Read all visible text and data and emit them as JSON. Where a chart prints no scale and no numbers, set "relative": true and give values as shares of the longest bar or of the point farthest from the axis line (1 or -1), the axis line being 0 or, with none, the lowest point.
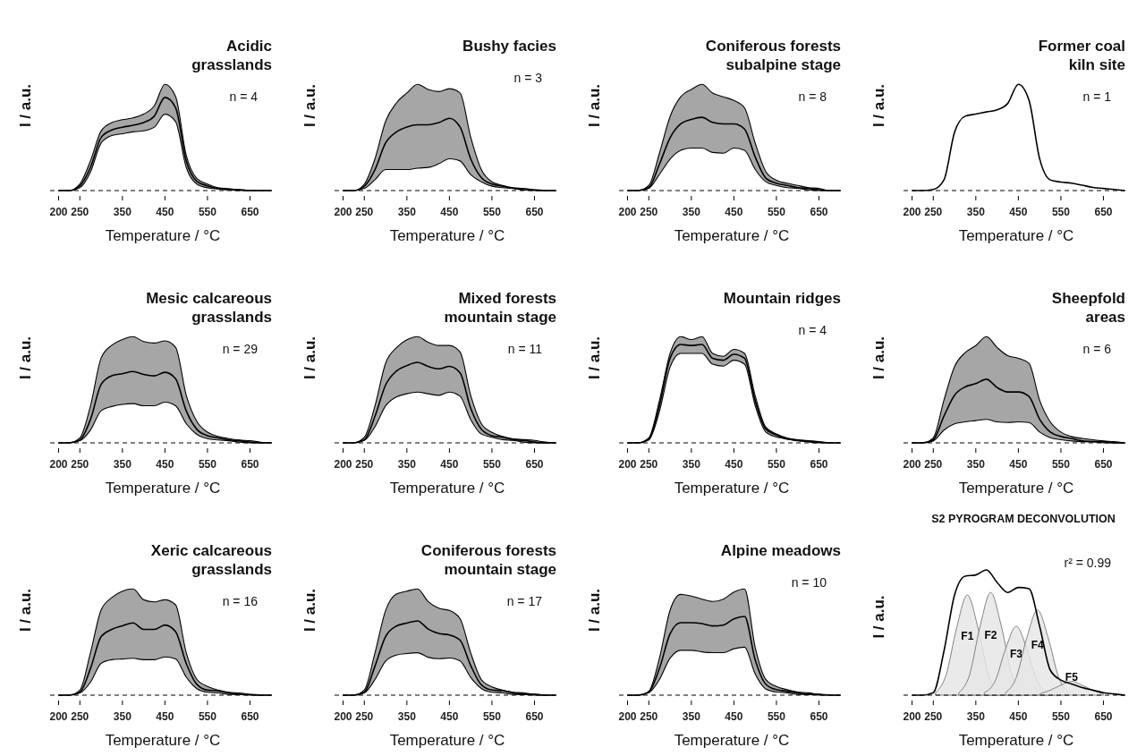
{
  "chart_data": [
    {
      "type": "line",
      "relative": true,
      "title": "Acidic\ngrasslands",
      "annotations": [
        "n = 4"
      ],
      "xlabel": "Temperature / °C",
      "ylabel": "I / a.u.",
      "xlim": [
        180,
        710
      ],
      "xticks": [
        200,
        250,
        350,
        450,
        550,
        650
      ],
      "ref_lines": [
        {
          "axis": "y",
          "value": 0,
          "line_style": "dashed",
          "color": "#000000"
        }
      ],
      "x": [
        200,
        225,
        250,
        275,
        300,
        325,
        350,
        375,
        400,
        425,
        450,
        475,
        500,
        525,
        550,
        575,
        600,
        625,
        650,
        675,
        700
      ],
      "series": [
        {
          "color": "#000000",
          "values": [
            0,
            0,
            0.05,
            0.25,
            0.57,
            0.65,
            0.68,
            0.7,
            0.73,
            0.8,
            1,
            0.89,
            0.32,
            0.1,
            0.05,
            0.02,
            0.01,
            0.01,
            0,
            0,
            0
          ],
          "lower": [
            0,
            0,
            0.03,
            0.2,
            0.51,
            0.59,
            0.61,
            0.63,
            0.64,
            0.68,
            0.82,
            0.74,
            0.25,
            0.07,
            0.03,
            0.02,
            0.01,
            0,
            0,
            0,
            0
          ],
          "upper": [
            0,
            0,
            0.07,
            0.32,
            0.64,
            0.73,
            0.76,
            0.78,
            0.82,
            0.91,
            1.14,
            1.01,
            0.38,
            0.13,
            0.07,
            0.03,
            0.02,
            0.01,
            0,
            0,
            0
          ]
        }
      ]
    },
    {
      "type": "line",
      "relative": true,
      "title": "Bushy facies",
      "annotations": [
        "n = 3"
      ],
      "xlabel": "Temperature / °C",
      "ylabel": "I / a.u.",
      "xlim": [
        180,
        710
      ],
      "xticks": [
        200,
        250,
        350,
        450,
        550,
        650
      ],
      "ref_lines": [
        {
          "axis": "y",
          "value": 0,
          "line_style": "dashed",
          "color": "#000000"
        }
      ],
      "x": [
        200,
        225,
        250,
        275,
        300,
        325,
        350,
        375,
        400,
        425,
        450,
        475,
        500,
        525,
        550,
        575,
        600,
        625,
        650,
        675,
        700
      ],
      "series": [
        {
          "color": "#000000",
          "values": [
            0,
            0,
            0.06,
            0.29,
            0.66,
            0.81,
            0.88,
            0.91,
            0.91,
            0.94,
            1,
            0.88,
            0.44,
            0.18,
            0.09,
            0.06,
            0.03,
            0.01,
            0.01,
            0,
            0
          ],
          "lower": [
            0,
            0,
            0.03,
            0.15,
            0.29,
            0.29,
            0.29,
            0.31,
            0.32,
            0.37,
            0.44,
            0.41,
            0.22,
            0.12,
            0.06,
            0.04,
            0.03,
            0.01,
            0,
            0,
            0
          ],
          "upper": [
            0,
            0,
            0.09,
            0.44,
            0.96,
            1.21,
            1.35,
            1.47,
            1.4,
            1.37,
            1.41,
            1.35,
            0.74,
            0.29,
            0.12,
            0.07,
            0.04,
            0.03,
            0.01,
            0,
            0
          ]
        }
      ]
    },
    {
      "type": "line",
      "relative": true,
      "title": "Coniferous forests\nsubalpine stage",
      "annotations": [
        "n = 8"
      ],
      "xlabel": "Temperature / °C",
      "ylabel": "I / a.u.",
      "xlim": [
        180,
        710
      ],
      "xticks": [
        200,
        250,
        350,
        450,
        550,
        650
      ],
      "ref_lines": [
        {
          "axis": "y",
          "value": 0,
          "line_style": "dashed",
          "color": "#000000"
        }
      ],
      "x": [
        200,
        225,
        250,
        275,
        300,
        325,
        350,
        375,
        400,
        425,
        450,
        475,
        500,
        525,
        550,
        575,
        600,
        625,
        650,
        675,
        700
      ],
      "series": [
        {
          "color": "#000000",
          "values": [
            0,
            0,
            0.04,
            0.36,
            0.72,
            0.91,
            0.97,
            1,
            0.93,
            0.91,
            0.91,
            0.84,
            0.46,
            0.17,
            0.1,
            0.07,
            0.04,
            0.03,
            0.01,
            0,
            0
          ],
          "lower": [
            0,
            0,
            0.03,
            0.22,
            0.43,
            0.55,
            0.58,
            0.58,
            0.52,
            0.51,
            0.58,
            0.55,
            0.29,
            0.12,
            0.07,
            0.04,
            0.03,
            0.01,
            0,
            0,
            0
          ],
          "upper": [
            0,
            0,
            0.07,
            0.51,
            1.01,
            1.28,
            1.38,
            1.45,
            1.33,
            1.28,
            1.23,
            1.13,
            0.65,
            0.26,
            0.14,
            0.1,
            0.07,
            0.04,
            0.03,
            0,
            0
          ]
        }
      ]
    },
    {
      "type": "line",
      "relative": true,
      "title": "Former coal\nkiln site",
      "annotations": [
        "n = 1"
      ],
      "xlabel": "Temperature / °C",
      "ylabel": "I / a.u.",
      "xlim": [
        180,
        710
      ],
      "xticks": [
        200,
        250,
        350,
        450,
        550,
        650
      ],
      "ref_lines": [
        {
          "axis": "y",
          "value": 0,
          "line_style": "dashed",
          "color": "#000000"
        }
      ],
      "x": [
        200,
        225,
        250,
        275,
        300,
        325,
        350,
        375,
        400,
        425,
        450,
        475,
        500,
        525,
        550,
        575,
        600,
        625,
        650,
        675,
        700
      ],
      "series": [
        {
          "color": "#000000",
          "values": [
            0,
            0,
            0.01,
            0.1,
            0.55,
            0.7,
            0.72,
            0.74,
            0.76,
            0.82,
            1,
            0.85,
            0.3,
            0.1,
            0.08,
            0.07,
            0.05,
            0.03,
            0.02,
            0.01,
            0
          ]
        }
      ]
    },
    {
      "type": "line",
      "relative": true,
      "title": "Mesic calcareous\ngrasslands",
      "annotations": [
        "n = 29"
      ],
      "xlabel": "Temperature / °C",
      "ylabel": "I / a.u.",
      "xlim": [
        180,
        710
      ],
      "xticks": [
        200,
        250,
        350,
        450,
        550,
        650
      ],
      "ref_lines": [
        {
          "axis": "y",
          "value": 0,
          "line_style": "dashed",
          "color": "#000000"
        }
      ],
      "x": [
        200,
        225,
        250,
        275,
        300,
        325,
        350,
        375,
        400,
        425,
        450,
        475,
        500,
        525,
        550,
        575,
        600,
        625,
        650,
        675,
        700
      ],
      "series": [
        {
          "color": "#000000",
          "values": [
            0,
            0,
            0.04,
            0.33,
            0.82,
            0.94,
            0.97,
            1,
            0.96,
            0.94,
            0.99,
            0.9,
            0.45,
            0.19,
            0.1,
            0.07,
            0.04,
            0.03,
            0.01,
            0,
            0
          ],
          "lower": [
            0,
            0,
            0.03,
            0.18,
            0.45,
            0.51,
            0.54,
            0.55,
            0.52,
            0.52,
            0.57,
            0.52,
            0.27,
            0.12,
            0.06,
            0.04,
            0.03,
            0.01,
            0,
            0,
            0
          ],
          "upper": [
            0,
            0,
            0.07,
            0.52,
            1.19,
            1.37,
            1.45,
            1.49,
            1.42,
            1.4,
            1.43,
            1.34,
            0.67,
            0.3,
            0.15,
            0.09,
            0.06,
            0.04,
            0.03,
            0.01,
            0
          ]
        }
      ]
    },
    {
      "type": "line",
      "relative": true,
      "title": "Mixed forests\nmountain stage",
      "annotations": [
        "n = 11"
      ],
      "xlabel": "Temperature / °C",
      "ylabel": "I / a.u.",
      "xlim": [
        180,
        710
      ],
      "xticks": [
        200,
        250,
        350,
        450,
        550,
        650
      ],
      "ref_lines": [
        {
          "axis": "y",
          "value": 0,
          "line_style": "dashed",
          "color": "#000000"
        }
      ],
      "x": [
        200,
        225,
        250,
        275,
        300,
        325,
        350,
        375,
        400,
        425,
        450,
        475,
        500,
        525,
        550,
        575,
        600,
        625,
        650,
        675,
        700
      ],
      "series": [
        {
          "color": "#000000",
          "values": [
            0,
            0,
            0.04,
            0.33,
            0.72,
            0.89,
            0.96,
            1,
            0.95,
            0.92,
            0.95,
            0.87,
            0.43,
            0.17,
            0.09,
            0.07,
            0.04,
            0.03,
            0.01,
            0,
            0
          ],
          "lower": [
            0,
            0,
            0.03,
            0.2,
            0.46,
            0.57,
            0.61,
            0.63,
            0.61,
            0.59,
            0.63,
            0.58,
            0.29,
            0.11,
            0.07,
            0.04,
            0.03,
            0.01,
            0,
            0,
            0
          ],
          "upper": [
            0,
            0,
            0.07,
            0.46,
            0.99,
            1.18,
            1.28,
            1.32,
            1.25,
            1.21,
            1.21,
            1.13,
            0.59,
            0.24,
            0.13,
            0.08,
            0.05,
            0.04,
            0.03,
            0.01,
            0
          ]
        }
      ]
    },
    {
      "type": "line",
      "relative": true,
      "title": "Mountain ridges",
      "annotations": [
        "n = 4"
      ],
      "xlabel": "Temperature / °C",
      "ylabel": "I / a.u.",
      "xlim": [
        180,
        710
      ],
      "xticks": [
        200,
        250,
        350,
        450,
        550,
        650
      ],
      "ref_lines": [
        {
          "axis": "y",
          "value": 0,
          "line_style": "dashed",
          "color": "#000000"
        }
      ],
      "x": [
        200,
        225,
        250,
        275,
        300,
        325,
        350,
        375,
        400,
        425,
        450,
        475,
        500,
        525,
        550,
        575,
        600,
        625,
        650,
        675,
        700
      ],
      "series": [
        {
          "color": "#000000",
          "values": [
            0,
            0,
            0.04,
            0.38,
            0.86,
            1,
            0.99,
            1,
            0.86,
            0.84,
            0.9,
            0.86,
            0.43,
            0.14,
            0.08,
            0.04,
            0.03,
            0.02,
            0.01,
            0,
            0
          ],
          "lower": [
            0,
            0,
            0.03,
            0.32,
            0.77,
            0.91,
            0.91,
            0.91,
            0.8,
            0.78,
            0.84,
            0.8,
            0.38,
            0.11,
            0.06,
            0.04,
            0.02,
            0.01,
            0,
            0,
            0
          ],
          "upper": [
            0,
            0,
            0.05,
            0.43,
            0.91,
            1.08,
            1.05,
            1.08,
            0.91,
            0.88,
            0.95,
            0.91,
            0.48,
            0.16,
            0.09,
            0.05,
            0.03,
            0.02,
            0.01,
            0,
            0
          ]
        }
      ]
    },
    {
      "type": "line",
      "relative": true,
      "title": "Sheepfold\nareas",
      "annotations": [
        "n = 6"
      ],
      "xlabel": "Temperature / °C",
      "ylabel": "I / a.u.",
      "xlim": [
        180,
        710
      ],
      "xticks": [
        200,
        250,
        350,
        450,
        550,
        650
      ],
      "ref_lines": [
        {
          "axis": "y",
          "value": 0,
          "line_style": "dashed",
          "color": "#000000"
        }
      ],
      "x": [
        200,
        225,
        250,
        275,
        300,
        325,
        350,
        375,
        400,
        425,
        450,
        475,
        500,
        525,
        550,
        575,
        600,
        625,
        650,
        675,
        700
      ],
      "series": [
        {
          "color": "#000000",
          "values": [
            0,
            0,
            0.05,
            0.42,
            0.75,
            0.88,
            0.93,
            1,
            0.87,
            0.8,
            0.8,
            0.73,
            0.37,
            0.17,
            0.1,
            0.07,
            0.03,
            0.02,
            0.02,
            0,
            0
          ],
          "lower": [
            0,
            0,
            0.03,
            0.2,
            0.3,
            0.33,
            0.35,
            0.37,
            0.33,
            0.32,
            0.33,
            0.32,
            0.17,
            0.08,
            0.05,
            0.03,
            0.02,
            0.02,
            0,
            0,
            0
          ],
          "upper": [
            0,
            0,
            0.08,
            0.67,
            1.2,
            1.42,
            1.53,
            1.67,
            1.5,
            1.37,
            1.33,
            1.25,
            0.67,
            0.33,
            0.17,
            0.1,
            0.07,
            0.05,
            0.03,
            0.02,
            0
          ]
        }
      ]
    },
    {
      "type": "line",
      "relative": true,
      "title": "Xeric calcareous\ngrasslands",
      "annotations": [
        "n = 16"
      ],
      "xlabel": "Temperature / °C",
      "ylabel": "I / a.u.",
      "xlim": [
        180,
        710
      ],
      "xticks": [
        200,
        250,
        350,
        450,
        550,
        650
      ],
      "ref_lines": [
        {
          "axis": "y",
          "value": 0,
          "line_style": "dashed",
          "color": "#000000"
        }
      ],
      "x": [
        200,
        225,
        250,
        275,
        300,
        325,
        350,
        375,
        400,
        425,
        450,
        475,
        500,
        525,
        550,
        575,
        600,
        625,
        650,
        675,
        700
      ],
      "series": [
        {
          "color": "#000000",
          "values": [
            0,
            0,
            0.04,
            0.37,
            0.81,
            0.91,
            0.96,
            1,
            0.91,
            0.91,
            0.97,
            0.88,
            0.44,
            0.15,
            0.07,
            0.06,
            0.03,
            0.01,
            0.01,
            0,
            0
          ],
          "lower": [
            0,
            0,
            0.03,
            0.18,
            0.44,
            0.49,
            0.5,
            0.51,
            0.49,
            0.49,
            0.53,
            0.5,
            0.25,
            0.09,
            0.04,
            0.03,
            0.01,
            0.01,
            0,
            0,
            0
          ],
          "upper": [
            0,
            0,
            0.07,
            0.59,
            1.18,
            1.35,
            1.44,
            1.47,
            1.32,
            1.29,
            1.32,
            1.25,
            0.59,
            0.22,
            0.12,
            0.07,
            0.04,
            0.03,
            0.01,
            0,
            0
          ]
        }
      ]
    },
    {
      "type": "line",
      "relative": true,
      "title": "Coniferous forests\nmountain stage",
      "annotations": [
        "n = 17"
      ],
      "xlabel": "Temperature / °C",
      "ylabel": "I / a.u.",
      "xlim": [
        180,
        710
      ],
      "xticks": [
        200,
        250,
        350,
        450,
        550,
        650
      ],
      "ref_lines": [
        {
          "axis": "y",
          "value": 0,
          "line_style": "dashed",
          "color": "#000000"
        }
      ],
      "x": [
        200,
        225,
        250,
        275,
        300,
        325,
        350,
        375,
        400,
        425,
        450,
        475,
        500,
        525,
        550,
        575,
        600,
        625,
        650,
        675,
        700
      ],
      "series": [
        {
          "color": "#000000",
          "values": [
            0,
            0,
            0.04,
            0.39,
            0.79,
            0.93,
            0.97,
            1,
            0.89,
            0.83,
            0.81,
            0.74,
            0.4,
            0.14,
            0.07,
            0.06,
            0.03,
            0.01,
            0.01,
            0,
            0
          ],
          "lower": [
            0,
            0,
            0.03,
            0.21,
            0.46,
            0.54,
            0.56,
            0.57,
            0.51,
            0.49,
            0.5,
            0.46,
            0.24,
            0.09,
            0.04,
            0.03,
            0.01,
            0.01,
            0,
            0,
            0
          ],
          "upper": [
            0,
            0,
            0.07,
            0.57,
            1.14,
            1.36,
            1.4,
            1.43,
            1.26,
            1.17,
            1.14,
            1.03,
            0.57,
            0.21,
            0.11,
            0.07,
            0.04,
            0.03,
            0.01,
            0,
            0
          ]
        }
      ]
    },
    {
      "type": "line",
      "relative": true,
      "title": "Alpine meadows",
      "annotations": [
        "n = 10"
      ],
      "xlabel": "Temperature / °C",
      "ylabel": "I / a.u.",
      "xlim": [
        180,
        710
      ],
      "xticks": [
        200,
        250,
        350,
        450,
        550,
        650
      ],
      "ref_lines": [
        {
          "axis": "y",
          "value": 0,
          "line_style": "dashed",
          "color": "#000000"
        }
      ],
      "x": [
        200,
        225,
        250,
        275,
        300,
        325,
        350,
        375,
        400,
        425,
        450,
        475,
        500,
        525,
        550,
        575,
        600,
        625,
        650,
        675,
        700
      ],
      "series": [
        {
          "color": "#000000",
          "values": [
            0,
            0,
            0.04,
            0.34,
            0.78,
            0.92,
            0.92,
            0.91,
            0.88,
            0.89,
            0.97,
            1,
            0.45,
            0.14,
            0.07,
            0.05,
            0.03,
            0.01,
            0.01,
            0,
            0
          ],
          "lower": [
            0,
            0,
            0.03,
            0.2,
            0.47,
            0.57,
            0.57,
            0.55,
            0.54,
            0.54,
            0.59,
            0.61,
            0.27,
            0.08,
            0.04,
            0.03,
            0.01,
            0.01,
            0,
            0,
            0
          ],
          "upper": [
            0,
            0,
            0.05,
            0.47,
            1.08,
            1.28,
            1.26,
            1.22,
            1.19,
            1.22,
            1.31,
            1.35,
            0.61,
            0.2,
            0.11,
            0.07,
            0.04,
            0.03,
            0.01,
            0,
            0
          ]
        }
      ]
    },
    {
      "type": "line",
      "relative": true,
      "title": "S2 PYROGRAM DECONVOLUTION",
      "annotations": [
        "r² = 0.99"
      ],
      "xlabel": "Temperature / °C",
      "ylabel": "I / a.u.",
      "xlim": [
        180,
        710
      ],
      "xticks": [
        200,
        250,
        350,
        450,
        550,
        650
      ],
      "ref_lines": [
        {
          "axis": "y",
          "value": 0,
          "line_style": "dashed",
          "color": "#000000"
        }
      ],
      "x": [
        200,
        225,
        250,
        275,
        300,
        325,
        350,
        375,
        400,
        425,
        450,
        475,
        500,
        525,
        550,
        575,
        600,
        625,
        650,
        675,
        700
      ],
      "series": [
        {
          "name": "F1",
          "type": "area",
          "color": "#e6e6e6",
          "x": [
            255,
            280,
            305,
            330,
            355,
            380,
            405
          ],
          "values": [
            0.02,
            0.16,
            0.54,
            0.8,
            0.54,
            0.16,
            0.02
          ]
        },
        {
          "name": "F2",
          "type": "area",
          "color": "#e6e6e6",
          "x": [
            310,
            335,
            360,
            385,
            410,
            435,
            460
          ],
          "values": [
            0.02,
            0.16,
            0.55,
            0.82,
            0.55,
            0.16,
            0.02
          ]
        },
        {
          "name": "F3",
          "type": "area",
          "color": "#e6e6e6",
          "x": [
            370,
            395,
            420,
            445,
            470,
            495,
            520
          ],
          "values": [
            0.02,
            0.11,
            0.37,
            0.55,
            0.37,
            0.11,
            0.02
          ]
        },
        {
          "name": "F4",
          "type": "area",
          "color": "#e6e6e6",
          "x": [
            420,
            445,
            470,
            495,
            520,
            545,
            570
          ],
          "values": [
            0.02,
            0.14,
            0.46,
            0.68,
            0.46,
            0.14,
            0.02
          ]
        },
        {
          "name": "F5",
          "type": "area",
          "color": "#e6e6e6",
          "x": [
            500,
            525,
            550,
            575,
            600,
            625,
            650
          ],
          "values": [
            0.01,
            0.04,
            0.08,
            0.11,
            0.08,
            0.04,
            0.01
          ]
        },
        {
          "color": "#000000",
          "values": [
            0,
            0,
            0.02,
            0.35,
            0.8,
            0.95,
            0.96,
            1,
            0.9,
            0.82,
            0.86,
            0.85,
            0.55,
            0.2,
            0.12,
            0.09,
            0.06,
            0.04,
            0.02,
            0.01,
            0
          ]
        }
      ]
    }
  ]
}
